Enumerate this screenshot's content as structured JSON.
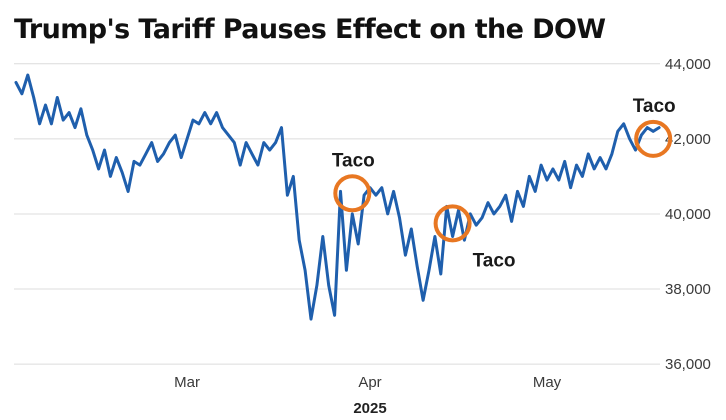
{
  "chart_data": {
    "type": "line",
    "title": "Trump's Tariff Pauses Effect on the DOW",
    "xlabel": "2025",
    "ylabel": "",
    "y_ticks": [
      "36,000",
      "38,000",
      "40,000",
      "42,000",
      "44,000"
    ],
    "y_tick_values": [
      36000,
      38000,
      40000,
      42000,
      44000
    ],
    "ylim": [
      35950,
      44100
    ],
    "x_ticks": [
      {
        "label": "Mar",
        "day": 29
      },
      {
        "label": "Apr",
        "day": 60
      },
      {
        "label": "May",
        "day": 90
      }
    ],
    "xlim": [
      0,
      112
    ],
    "x_unit_note": "",
    "grid": "horizontal",
    "line_color": "#1f5fad",
    "annotation_color": "#e87722",
    "series": [
      {
        "name": "",
        "x": [
          0,
          1,
          2,
          3,
          4,
          5,
          6,
          7,
          8,
          9,
          10,
          11,
          12,
          13,
          14,
          15,
          16,
          17,
          18,
          19,
          20,
          21,
          22,
          23,
          24,
          25,
          26,
          27,
          28,
          29,
          30,
          31,
          32,
          33,
          34,
          35,
          36,
          37,
          38,
          39,
          40,
          41,
          42,
          43,
          44,
          45,
          46,
          47,
          48,
          49,
          50,
          51,
          52,
          53,
          54,
          55,
          56,
          57,
          58,
          59,
          60,
          61,
          62,
          63,
          64,
          65,
          66,
          67,
          68,
          69,
          70,
          71,
          72,
          73,
          74,
          75,
          76,
          77,
          78,
          79,
          80,
          81,
          82,
          83,
          84,
          85,
          86,
          87,
          88,
          89,
          90,
          91,
          92,
          93,
          94,
          95,
          96,
          97,
          98,
          99,
          100,
          101,
          102,
          103,
          104,
          105,
          106,
          107,
          108,
          109
        ],
        "y": [
          43500,
          43200,
          43700,
          43100,
          42400,
          42900,
          42400,
          43100,
          42500,
          42700,
          42300,
          42800,
          42100,
          41700,
          41200,
          41700,
          41000,
          41500,
          41100,
          40600,
          41400,
          41300,
          41600,
          41900,
          41400,
          41600,
          41900,
          42100,
          41500,
          42000,
          42500,
          42400,
          42700,
          42400,
          42700,
          42300,
          42100,
          41900,
          41300,
          41900,
          41600,
          41300,
          41900,
          41700,
          41900,
          42300,
          40500,
          41000,
          39300,
          38500,
          37200,
          38100,
          39400,
          38100,
          37300,
          40600,
          38500,
          40000,
          39200,
          40500,
          40700,
          40500,
          40700,
          40000,
          40600,
          39900,
          38900,
          39600,
          38600,
          37700,
          38500,
          39400,
          38400,
          40200,
          39400,
          40100,
          39300,
          40000,
          39700,
          39900,
          40300,
          40000,
          40200,
          40500,
          39800,
          40600,
          40200,
          41000,
          40600,
          41300,
          40900,
          41200,
          40900,
          41400,
          40700,
          41300,
          41000,
          41600,
          41200,
          41500,
          41200,
          41600,
          42200,
          42400,
          42000,
          41700,
          42100,
          42300,
          42200,
          42300
        ]
      }
    ],
    "annotations": [
      {
        "label": "Taco",
        "day": 57,
        "value": 40550,
        "label_position": "above"
      },
      {
        "label": "Taco",
        "day": 74,
        "value": 39750,
        "label_position": "below-right"
      },
      {
        "label": "Taco",
        "day": 108,
        "value": 42000,
        "label_position": "above"
      }
    ]
  }
}
